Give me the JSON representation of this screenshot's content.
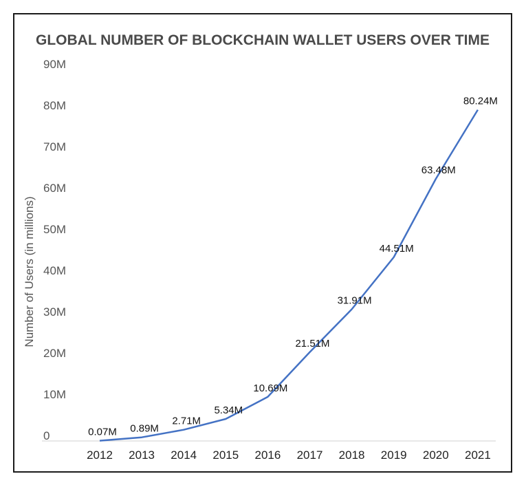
{
  "chart_data": {
    "type": "line",
    "title": "GLOBAL NUMBER OF BLOCKCHAIN WALLET USERS OVER TIME",
    "xlabel": "",
    "ylabel": "Number of Users (in millions)",
    "categories": [
      "2012",
      "2013",
      "2014",
      "2015",
      "2016",
      "2017",
      "2018",
      "2019",
      "2020",
      "2021"
    ],
    "series": [
      {
        "values": [
          0.07,
          0.89,
          2.71,
          5.34,
          10.69,
          21.51,
          31.91,
          44.51,
          63.48,
          80.24
        ],
        "labels": [
          "0.07M",
          "0.89M",
          "2.71M",
          "5.34M",
          "10.69M",
          "21.51M",
          "31.91M",
          "44.51M",
          "63.48M",
          "80.24M"
        ],
        "color": "#4472c4"
      }
    ],
    "ylim": [
      0,
      90
    ],
    "yticks": [
      0,
      10,
      20,
      30,
      40,
      50,
      60,
      70,
      80,
      90
    ],
    "ytick_labels": [
      "0",
      "10M",
      "20M",
      "30M",
      "40M",
      "50M",
      "60M",
      "70M",
      "80M",
      "90M"
    ],
    "grid": false,
    "legend": "none"
  }
}
